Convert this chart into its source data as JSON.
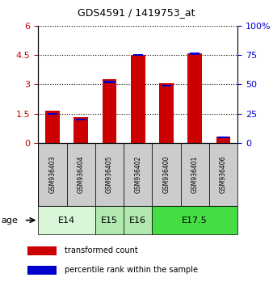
{
  "title": "GDS4591 / 1419753_at",
  "samples": [
    "GSM936403",
    "GSM936404",
    "GSM936405",
    "GSM936402",
    "GSM936400",
    "GSM936401",
    "GSM936406"
  ],
  "transformed_count": [
    1.65,
    1.32,
    3.25,
    4.52,
    3.05,
    4.6,
    0.32
  ],
  "percentile_pct": [
    25,
    20,
    52,
    75,
    49,
    76,
    5
  ],
  "ylim_left": [
    0,
    6
  ],
  "ylim_right": [
    0,
    100
  ],
  "yticks_left": [
    0,
    1.5,
    3.0,
    4.5,
    6.0
  ],
  "yticks_right": [
    0,
    25,
    50,
    75,
    100
  ],
  "ytick_labels_left": [
    "0",
    "1.5",
    "3",
    "4.5",
    "6"
  ],
  "ytick_labels_right": [
    "0",
    "25",
    "50",
    "75",
    "100%"
  ],
  "age_groups": [
    {
      "label": "E14",
      "start": 0,
      "end": 2,
      "color": "#d8f5d8"
    },
    {
      "label": "E15",
      "start": 2,
      "end": 3,
      "color": "#b0e8b0"
    },
    {
      "label": "E16",
      "start": 3,
      "end": 4,
      "color": "#b0e8b0"
    },
    {
      "label": "E17.5",
      "start": 4,
      "end": 7,
      "color": "#44dd44"
    }
  ],
  "bar_color_red": "#cc0000",
  "bar_color_blue": "#0000cc",
  "bar_width": 0.5,
  "background_plot": "#ffffff",
  "background_sample": "#cccccc",
  "label_transformed": "transformed count",
  "label_percentile": "percentile rank within the sample",
  "age_label": "age",
  "left_axis_color": "#cc0000",
  "right_axis_color": "#0000cc"
}
